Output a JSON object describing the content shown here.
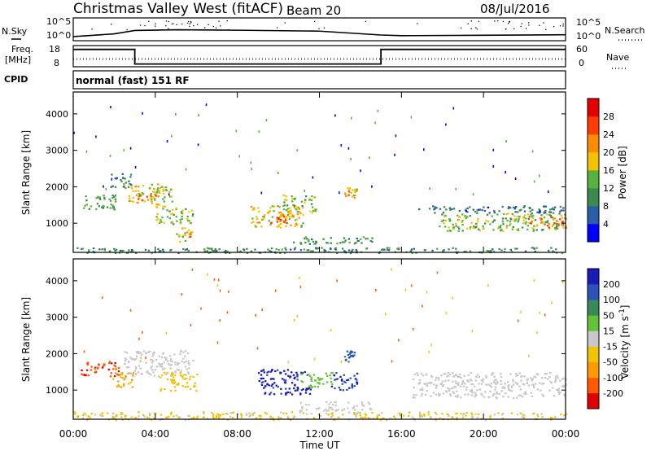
{
  "header": {
    "title": "Christmas Valley West (fitACF)",
    "beam": "Beam 20",
    "date": "08/Jul/2016"
  },
  "colors": {
    "power_scale": [
      "#0000ff",
      "#2a5ea8",
      "#3d8a4f",
      "#56b33d",
      "#f5c200",
      "#ff8c00",
      "#ff3c00",
      "#e60000"
    ],
    "velocity_scale": [
      "#e00000",
      "#ff5a00",
      "#ff9a00",
      "#f2c300",
      "#c8c8c8",
      "#63c23a",
      "#3a8a58",
      "#2a52b8",
      "#1a1ab4"
    ],
    "ground_scatter": "#b4b4b4"
  },
  "chart_data": [
    {
      "type": "line",
      "panel": "nsky-nsearch",
      "left_label": "N.Sky",
      "right_label": "N.Search",
      "left_ticks": [
        "10^5",
        "10^0"
      ],
      "right_ticks": [
        "10^5",
        "10^0"
      ],
      "series": [
        {
          "x_hours": [
            0,
            1,
            2,
            3,
            5,
            8,
            12,
            15,
            16,
            20,
            24
          ],
          "level": [
            0.18,
            0.24,
            0.3,
            0.45,
            0.48,
            0.46,
            0.42,
            0.25,
            0.22,
            0.24,
            0.26
          ]
        }
      ]
    },
    {
      "type": "line",
      "panel": "freq-nave",
      "left_label": "Freq. [MHz]",
      "right_label": "Nave",
      "left_ticks": [
        "18",
        "8"
      ],
      "right_ticks": [
        "60",
        "0"
      ],
      "series": [
        {
          "x_hours": [
            0,
            3,
            3,
            15,
            15,
            24
          ],
          "freq_mhz": [
            16.2,
            16.2,
            9.3,
            9.3,
            16.2,
            16.2
          ]
        },
        {
          "x_hours": [
            0,
            24
          ],
          "nave": [
            22,
            22
          ]
        }
      ]
    },
    {
      "type": "text",
      "panel": "cpid",
      "label": "CPID",
      "value": "normal (fast) 151 RF"
    },
    {
      "type": "heatmap",
      "panel": "power",
      "ylabel": "Slant Range [km]",
      "yticks": [
        1000,
        2000,
        3000,
        4000
      ],
      "ylim": [
        200,
        4600
      ],
      "xlim_hours": [
        0,
        24
      ],
      "colorbar": {
        "label": "Power [dB]",
        "ticks": [
          "4",
          "8",
          "12",
          "16",
          "20",
          "24",
          "28"
        ],
        "range": [
          0,
          32
        ]
      },
      "patches": [
        {
          "t0": 0.4,
          "t1": 2.1,
          "r0": 1400,
          "r1": 1800,
          "v": 12
        },
        {
          "t0": 2.4,
          "t1": 4.8,
          "r0": 1600,
          "r1": 2100,
          "v": 17
        },
        {
          "t0": 3.0,
          "t1": 4.2,
          "r0": 1500,
          "r1": 1800,
          "v": 22
        },
        {
          "t0": 4.0,
          "t1": 5.8,
          "r0": 1000,
          "r1": 1500,
          "v": 15
        },
        {
          "t0": 5.0,
          "t1": 5.8,
          "r0": 500,
          "r1": 900,
          "v": 20
        },
        {
          "t0": 1.8,
          "t1": 2.8,
          "r0": 2000,
          "r1": 2400,
          "v": 9
        },
        {
          "t0": 8.6,
          "t1": 11.2,
          "r0": 900,
          "r1": 1500,
          "v": 18
        },
        {
          "t0": 9.6,
          "t1": 10.4,
          "r0": 1000,
          "r1": 1300,
          "v": 24
        },
        {
          "t0": 10.2,
          "t1": 11.8,
          "r0": 1300,
          "r1": 1800,
          "v": 14
        },
        {
          "t0": 10.6,
          "t1": 14.6,
          "r0": 450,
          "r1": 650,
          "v": 11
        },
        {
          "t0": 13.2,
          "t1": 13.8,
          "r0": 1700,
          "r1": 2000,
          "v": 19
        },
        {
          "t0": 16.8,
          "t1": 24.0,
          "r0": 1300,
          "r1": 1500,
          "v": 7
        },
        {
          "t0": 17.8,
          "t1": 24.0,
          "r0": 800,
          "r1": 1300,
          "v": 14
        },
        {
          "t0": 22.0,
          "t1": 24.0,
          "r0": 900,
          "r1": 1200,
          "v": 22
        },
        {
          "t0": 0.0,
          "t1": 24.0,
          "r0": 200,
          "r1": 350,
          "v": 10
        }
      ]
    },
    {
      "type": "heatmap",
      "panel": "velocity",
      "ylabel": "Slant Range [km]",
      "yticks": [
        1000,
        2000,
        3000,
        4000
      ],
      "ylim": [
        200,
        4600
      ],
      "xlim_hours": [
        0,
        24
      ],
      "colorbar": {
        "label": "Velocity [m s^-1]",
        "ticks": [
          "200",
          "100",
          "50",
          "15",
          "-15",
          "-50",
          "-100",
          "-200"
        ],
        "range": [
          -250,
          250
        ]
      },
      "xticks": [
        "00:00",
        "04:00",
        "08:00",
        "12:00",
        "16:00",
        "20:00",
        "00:00"
      ],
      "xlabel": "Time UT",
      "patches": [
        {
          "t0": 0.3,
          "t1": 2.2,
          "r0": 1400,
          "r1": 1800,
          "v": -180
        },
        {
          "t0": 1.8,
          "t1": 3.0,
          "r0": 1100,
          "r1": 1500,
          "v": -90
        },
        {
          "t0": 2.4,
          "t1": 5.8,
          "r0": 1400,
          "r1": 2100,
          "v": 0
        },
        {
          "t0": 4.2,
          "t1": 6.0,
          "r0": 1000,
          "r1": 1500,
          "v": -60
        },
        {
          "t0": 9.0,
          "t1": 11.6,
          "r0": 900,
          "r1": 1600,
          "v": 210
        },
        {
          "t0": 11.0,
          "t1": 12.6,
          "r0": 1100,
          "r1": 1500,
          "v": 40
        },
        {
          "t0": 12.5,
          "t1": 13.8,
          "r0": 1000,
          "r1": 1500,
          "v": 180
        },
        {
          "t0": 11.0,
          "t1": 14.5,
          "r0": 450,
          "r1": 700,
          "v": 0
        },
        {
          "t0": 16.5,
          "t1": 24.0,
          "r0": 800,
          "r1": 1500,
          "v": 0
        },
        {
          "t0": 0.0,
          "t1": 24.0,
          "r0": 200,
          "r1": 420,
          "v": -30
        },
        {
          "t0": 13.2,
          "t1": 13.8,
          "r0": 1800,
          "r1": 2100,
          "v": 140
        }
      ]
    }
  ]
}
